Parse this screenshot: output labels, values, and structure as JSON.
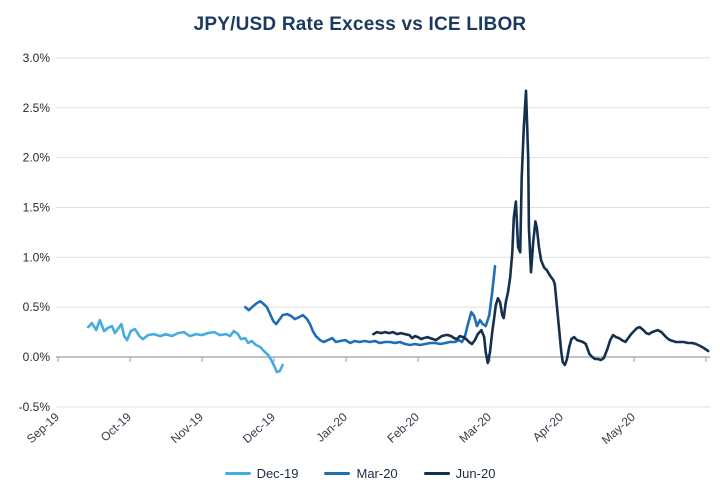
{
  "chart_data": {
    "type": "line",
    "title": "JPY/USD Rate Excess vs ICE LIBOR",
    "xlabel": "",
    "ylabel": "",
    "unit": "%",
    "ylim": [
      -0.5,
      3.0
    ],
    "grid": "horizontal",
    "legend_position": "bottom",
    "x_unit": "months_from_Sep19",
    "y_ticks": [
      {
        "label": "3.0%",
        "value": 3.0
      },
      {
        "label": "2.5%",
        "value": 2.5
      },
      {
        "label": "2.0%",
        "value": 2.0
      },
      {
        "label": "1.5%",
        "value": 1.5
      },
      {
        "label": "1.0%",
        "value": 1.0
      },
      {
        "label": "0.5%",
        "value": 0.5
      },
      {
        "label": "0.0%",
        "value": 0.0
      },
      {
        "label": "-0.5%",
        "value": -0.5
      }
    ],
    "x_ticks": [
      {
        "label": "Sep-19",
        "month": 0
      },
      {
        "label": "Oct-19",
        "month": 1
      },
      {
        "label": "Nov-19",
        "month": 2
      },
      {
        "label": "Dec-19",
        "month": 3
      },
      {
        "label": "Jan-20",
        "month": 4
      },
      {
        "label": "Feb-20",
        "month": 5
      },
      {
        "label": "Mar-20",
        "month": 6
      },
      {
        "label": "Apr-20",
        "month": 7
      },
      {
        "label": "May-20",
        "month": 8
      }
    ],
    "series": [
      {
        "name": "Dec-19",
        "color": "#45ace0",
        "points": [
          [
            0.42,
            0.3
          ],
          [
            0.47,
            0.34
          ],
          [
            0.53,
            0.27
          ],
          [
            0.58,
            0.37
          ],
          [
            0.64,
            0.26
          ],
          [
            0.69,
            0.29
          ],
          [
            0.75,
            0.31
          ],
          [
            0.79,
            0.24
          ],
          [
            0.83,
            0.28
          ],
          [
            0.88,
            0.33
          ],
          [
            0.92,
            0.21
          ],
          [
            0.96,
            0.17
          ],
          [
            1.01,
            0.26
          ],
          [
            1.07,
            0.28
          ],
          [
            1.13,
            0.21
          ],
          [
            1.18,
            0.18
          ],
          [
            1.25,
            0.22
          ],
          [
            1.33,
            0.23
          ],
          [
            1.42,
            0.21
          ],
          [
            1.5,
            0.23
          ],
          [
            1.58,
            0.21
          ],
          [
            1.67,
            0.24
          ],
          [
            1.75,
            0.25
          ],
          [
            1.83,
            0.21
          ],
          [
            1.92,
            0.23
          ],
          [
            2.0,
            0.22
          ],
          [
            2.08,
            0.24
          ],
          [
            2.17,
            0.25
          ],
          [
            2.25,
            0.22
          ],
          [
            2.33,
            0.23
          ],
          [
            2.39,
            0.21
          ],
          [
            2.44,
            0.26
          ],
          [
            2.5,
            0.23
          ],
          [
            2.54,
            0.18
          ],
          [
            2.6,
            0.19
          ],
          [
            2.64,
            0.14
          ],
          [
            2.69,
            0.16
          ],
          [
            2.75,
            0.12
          ],
          [
            2.81,
            0.1
          ],
          [
            2.86,
            0.06
          ],
          [
            2.92,
            0.02
          ],
          [
            2.97,
            -0.04
          ],
          [
            3.01,
            -0.1
          ],
          [
            3.04,
            -0.15
          ],
          [
            3.08,
            -0.14
          ],
          [
            3.12,
            -0.08
          ]
        ]
      },
      {
        "name": "Mar-20",
        "color": "#1d6eb5",
        "points": [
          [
            2.6,
            0.5
          ],
          [
            2.65,
            0.47
          ],
          [
            2.71,
            0.51
          ],
          [
            2.76,
            0.54
          ],
          [
            2.81,
            0.56
          ],
          [
            2.86,
            0.53
          ],
          [
            2.9,
            0.5
          ],
          [
            2.94,
            0.44
          ],
          [
            2.99,
            0.36
          ],
          [
            3.03,
            0.33
          ],
          [
            3.07,
            0.37
          ],
          [
            3.12,
            0.42
          ],
          [
            3.18,
            0.43
          ],
          [
            3.24,
            0.41
          ],
          [
            3.29,
            0.38
          ],
          [
            3.35,
            0.4
          ],
          [
            3.4,
            0.42
          ],
          [
            3.46,
            0.38
          ],
          [
            3.5,
            0.33
          ],
          [
            3.54,
            0.26
          ],
          [
            3.58,
            0.21
          ],
          [
            3.64,
            0.17
          ],
          [
            3.69,
            0.15
          ],
          [
            3.75,
            0.17
          ],
          [
            3.81,
            0.19
          ],
          [
            3.86,
            0.15
          ],
          [
            3.92,
            0.16
          ],
          [
            3.99,
            0.17
          ],
          [
            4.06,
            0.14
          ],
          [
            4.12,
            0.16
          ],
          [
            4.19,
            0.15
          ],
          [
            4.26,
            0.16
          ],
          [
            4.33,
            0.15
          ],
          [
            4.4,
            0.16
          ],
          [
            4.47,
            0.14
          ],
          [
            4.54,
            0.15
          ],
          [
            4.61,
            0.15
          ],
          [
            4.68,
            0.14
          ],
          [
            4.75,
            0.15
          ],
          [
            4.82,
            0.13
          ],
          [
            4.89,
            0.12
          ],
          [
            4.96,
            0.13
          ],
          [
            5.03,
            0.12
          ],
          [
            5.1,
            0.13
          ],
          [
            5.17,
            0.14
          ],
          [
            5.24,
            0.14
          ],
          [
            5.31,
            0.13
          ],
          [
            5.38,
            0.14
          ],
          [
            5.44,
            0.15
          ],
          [
            5.51,
            0.15
          ],
          [
            5.57,
            0.17
          ],
          [
            5.61,
            0.15
          ],
          [
            5.65,
            0.2
          ],
          [
            5.69,
            0.32
          ],
          [
            5.74,
            0.45
          ],
          [
            5.78,
            0.41
          ],
          [
            5.82,
            0.31
          ],
          [
            5.86,
            0.37
          ],
          [
            5.9,
            0.33
          ],
          [
            5.94,
            0.31
          ],
          [
            5.99,
            0.42
          ],
          [
            6.03,
            0.65
          ],
          [
            6.07,
            0.91
          ]
        ]
      },
      {
        "name": "Jun-20",
        "color": "#15304f",
        "points": [
          [
            4.38,
            0.23
          ],
          [
            4.43,
            0.25
          ],
          [
            4.49,
            0.24
          ],
          [
            4.54,
            0.25
          ],
          [
            4.6,
            0.24
          ],
          [
            4.65,
            0.25
          ],
          [
            4.71,
            0.23
          ],
          [
            4.76,
            0.24
          ],
          [
            4.82,
            0.23
          ],
          [
            4.88,
            0.22
          ],
          [
            4.92,
            0.19
          ],
          [
            4.96,
            0.21
          ],
          [
            5.0,
            0.2
          ],
          [
            5.04,
            0.18
          ],
          [
            5.08,
            0.19
          ],
          [
            5.13,
            0.2
          ],
          [
            5.17,
            0.19
          ],
          [
            5.21,
            0.18
          ],
          [
            5.25,
            0.17
          ],
          [
            5.29,
            0.19
          ],
          [
            5.33,
            0.21
          ],
          [
            5.38,
            0.22
          ],
          [
            5.42,
            0.22
          ],
          [
            5.46,
            0.21
          ],
          [
            5.5,
            0.19
          ],
          [
            5.54,
            0.18
          ],
          [
            5.58,
            0.21
          ],
          [
            5.63,
            0.2
          ],
          [
            5.67,
            0.18
          ],
          [
            5.71,
            0.15
          ],
          [
            5.75,
            0.13
          ],
          [
            5.79,
            0.17
          ],
          [
            5.83,
            0.23
          ],
          [
            5.88,
            0.27
          ],
          [
            5.92,
            0.2
          ],
          [
            5.94,
            0.05
          ],
          [
            5.97,
            -0.06
          ],
          [
            6.0,
            0.05
          ],
          [
            6.03,
            0.25
          ],
          [
            6.06,
            0.4
          ],
          [
            6.08,
            0.52
          ],
          [
            6.11,
            0.59
          ],
          [
            6.14,
            0.55
          ],
          [
            6.17,
            0.42
          ],
          [
            6.19,
            0.39
          ],
          [
            6.22,
            0.55
          ],
          [
            6.25,
            0.65
          ],
          [
            6.28,
            0.8
          ],
          [
            6.31,
            1.05
          ],
          [
            6.33,
            1.4
          ],
          [
            6.36,
            1.56
          ],
          [
            6.39,
            1.1
          ],
          [
            6.42,
            1.05
          ],
          [
            6.44,
            1.8
          ],
          [
            6.47,
            2.3
          ],
          [
            6.5,
            2.67
          ],
          [
            6.53,
            2.0
          ],
          [
            6.54,
            1.3
          ],
          [
            6.57,
            0.85
          ],
          [
            6.6,
            1.15
          ],
          [
            6.63,
            1.36
          ],
          [
            6.65,
            1.3
          ],
          [
            6.68,
            1.1
          ],
          [
            6.71,
            0.97
          ],
          [
            6.75,
            0.9
          ],
          [
            6.79,
            0.87
          ],
          [
            6.83,
            0.82
          ],
          [
            6.88,
            0.77
          ],
          [
            6.9,
            0.73
          ],
          [
            6.93,
            0.5
          ],
          [
            6.96,
            0.28
          ],
          [
            6.99,
            0.05
          ],
          [
            7.01,
            -0.05
          ],
          [
            7.04,
            -0.08
          ],
          [
            7.07,
            -0.02
          ],
          [
            7.1,
            0.1
          ],
          [
            7.13,
            0.18
          ],
          [
            7.17,
            0.2
          ],
          [
            7.21,
            0.17
          ],
          [
            7.25,
            0.16
          ],
          [
            7.29,
            0.15
          ],
          [
            7.33,
            0.13
          ],
          [
            7.38,
            0.03
          ],
          [
            7.42,
            0.0
          ],
          [
            7.46,
            -0.02
          ],
          [
            7.5,
            -0.02
          ],
          [
            7.54,
            -0.03
          ],
          [
            7.58,
            -0.01
          ],
          [
            7.63,
            0.08
          ],
          [
            7.67,
            0.17
          ],
          [
            7.71,
            0.22
          ],
          [
            7.75,
            0.2
          ],
          [
            7.79,
            0.19
          ],
          [
            7.83,
            0.17
          ],
          [
            7.88,
            0.15
          ],
          [
            7.92,
            0.19
          ],
          [
            7.96,
            0.23
          ],
          [
            8.0,
            0.26
          ],
          [
            8.04,
            0.29
          ],
          [
            8.08,
            0.3
          ],
          [
            8.13,
            0.27
          ],
          [
            8.17,
            0.24
          ],
          [
            8.21,
            0.23
          ],
          [
            8.25,
            0.25
          ],
          [
            8.29,
            0.26
          ],
          [
            8.33,
            0.27
          ],
          [
            8.38,
            0.25
          ],
          [
            8.42,
            0.22
          ],
          [
            8.46,
            0.19
          ],
          [
            8.5,
            0.17
          ],
          [
            8.54,
            0.16
          ],
          [
            8.58,
            0.15
          ],
          [
            8.64,
            0.15
          ],
          [
            8.69,
            0.15
          ],
          [
            8.75,
            0.14
          ],
          [
            8.81,
            0.14
          ],
          [
            8.86,
            0.13
          ],
          [
            8.92,
            0.11
          ],
          [
            8.97,
            0.09
          ],
          [
            9.03,
            0.06
          ]
        ]
      }
    ],
    "colors": {
      "title": "#1b3a5f",
      "gridline": "#dcdfe3",
      "zero_axis": "#9aa0a6",
      "y_tick_label": "#2a2a2a",
      "x_tick_label": "#333d4a",
      "legend_label": "#1c2b44",
      "background": "#ffffff"
    }
  }
}
